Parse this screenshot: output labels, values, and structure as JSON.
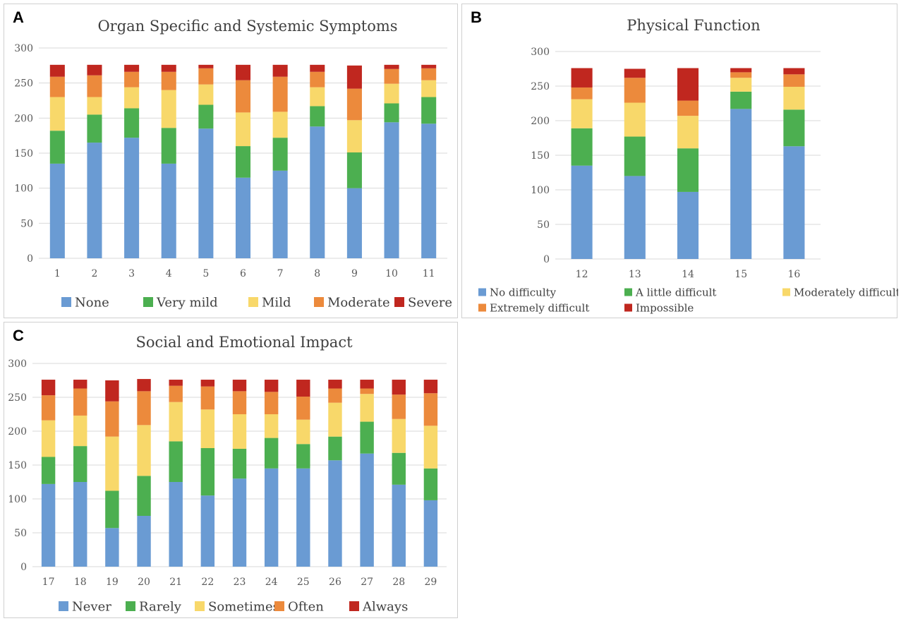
{
  "colors": [
    "#6a9bd3",
    "#4caf50",
    "#f8d86a",
    "#ec8a3c",
    "#c0271f"
  ],
  "chart_data": [
    {
      "type": "bar",
      "stacked": true,
      "panel_label": "A",
      "title": "Organ Specific and Systemic Symptoms",
      "ylim": [
        0,
        300
      ],
      "yticks": [
        0,
        50,
        100,
        150,
        200,
        250,
        300
      ],
      "grid": true,
      "legend": "bottom",
      "categories": [
        "1",
        "2",
        "3",
        "4",
        "5",
        "6",
        "7",
        "8",
        "9",
        "10",
        "11"
      ],
      "series": [
        {
          "name": "None",
          "values": [
            135,
            165,
            172,
            135,
            185,
            115,
            125,
            188,
            100,
            194,
            192
          ]
        },
        {
          "name": "Very mild",
          "values": [
            47,
            40,
            42,
            51,
            34,
            45,
            47,
            29,
            51,
            27,
            38
          ]
        },
        {
          "name": "Mild",
          "values": [
            48,
            25,
            30,
            54,
            29,
            48,
            37,
            27,
            46,
            28,
            24
          ]
        },
        {
          "name": "Moderate",
          "values": [
            29,
            31,
            22,
            26,
            23,
            46,
            50,
            22,
            45,
            21,
            17
          ]
        },
        {
          "name": "Severe",
          "values": [
            17,
            15,
            10,
            10,
            5,
            22,
            17,
            10,
            33,
            6,
            5
          ]
        }
      ]
    },
    {
      "type": "bar",
      "stacked": true,
      "panel_label": "B",
      "title": "Physical Function",
      "ylim": [
        0,
        300
      ],
      "yticks": [
        0,
        50,
        100,
        150,
        200,
        250,
        300
      ],
      "grid": true,
      "legend": "bottom",
      "categories": [
        "12",
        "13",
        "14",
        "15",
        "16"
      ],
      "series": [
        {
          "name": "No difficulty",
          "values": [
            135,
            120,
            97,
            217,
            163
          ]
        },
        {
          "name": "A little difficult",
          "values": [
            54,
            57,
            63,
            25,
            53
          ]
        },
        {
          "name": "Moderately difficult",
          "values": [
            42,
            49,
            47,
            20,
            33
          ]
        },
        {
          "name": "Extremely difficult",
          "values": [
            17,
            36,
            22,
            8,
            18
          ]
        },
        {
          "name": "Impossible",
          "values": [
            28,
            13,
            47,
            6,
            9
          ]
        }
      ]
    },
    {
      "type": "bar",
      "stacked": true,
      "panel_label": "C",
      "title": "Social and Emotional Impact",
      "ylim": [
        0,
        300
      ],
      "yticks": [
        0,
        50,
        100,
        150,
        200,
        250,
        300
      ],
      "grid": true,
      "legend": "bottom",
      "categories": [
        "17",
        "18",
        "19",
        "20",
        "21",
        "22",
        "23",
        "24",
        "25",
        "26",
        "27",
        "28",
        "29"
      ],
      "series": [
        {
          "name": "Never",
          "values": [
            122,
            125,
            57,
            75,
            125,
            105,
            130,
            145,
            145,
            157,
            167,
            121,
            98
          ]
        },
        {
          "name": "Rarely",
          "values": [
            40,
            53,
            55,
            59,
            60,
            70,
            44,
            45,
            36,
            35,
            47,
            47,
            47
          ]
        },
        {
          "name": "Sometimes",
          "values": [
            54,
            45,
            80,
            75,
            58,
            57,
            51,
            35,
            36,
            50,
            41,
            50,
            63
          ]
        },
        {
          "name": "Often",
          "values": [
            37,
            40,
            52,
            50,
            24,
            34,
            34,
            33,
            34,
            21,
            8,
            36,
            48
          ]
        },
        {
          "name": "Always",
          "values": [
            23,
            13,
            31,
            18,
            9,
            10,
            17,
            18,
            25,
            13,
            13,
            22,
            20
          ]
        }
      ]
    }
  ]
}
